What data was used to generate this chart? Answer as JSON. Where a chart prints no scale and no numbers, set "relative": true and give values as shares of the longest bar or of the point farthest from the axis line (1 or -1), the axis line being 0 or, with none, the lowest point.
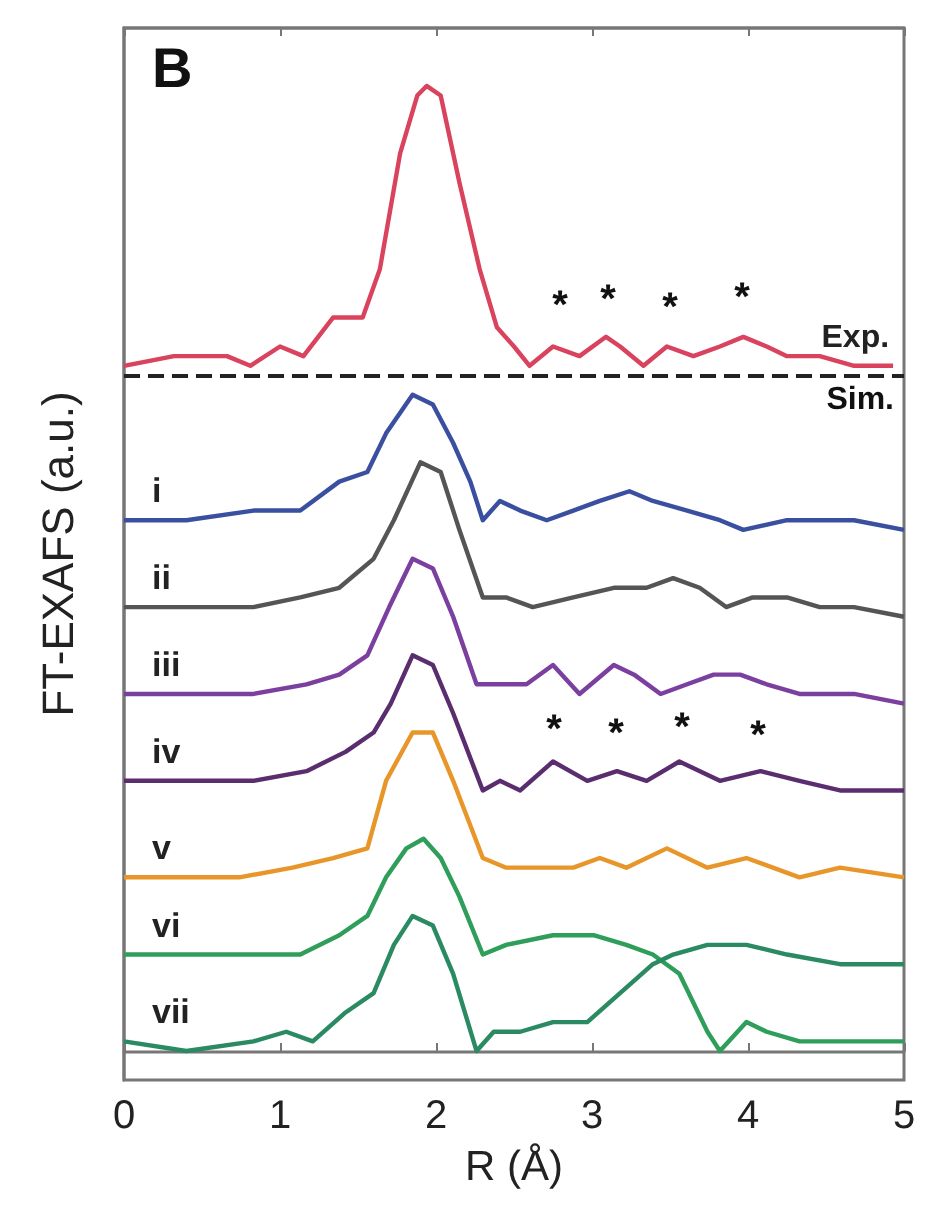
{
  "chart_data": {
    "type": "line",
    "relative": true,
    "xlabel": "R (Å)",
    "ylabel": "FT-EXAFS (a.u.)",
    "xlim": [
      0,
      5
    ],
    "xticks": [
      0,
      1,
      2,
      3,
      4,
      5
    ],
    "marker": "none",
    "legend": false,
    "annotations": [
      "B",
      "Sim.",
      "*",
      "*",
      "*",
      "*",
      "*",
      "*",
      "*",
      "*"
    ],
    "ref_lines": [
      {
        "axis": "y",
        "value": 0.7,
        "line_style": "dashed",
        "color": "#222222"
      }
    ],
    "series": [
      {
        "name": "Exp.",
        "color": "#d9435e",
        "x": [
          0,
          0.32,
          0.49,
          0.66,
          0.81,
          1.0,
          1.15,
          1.34,
          1.45,
          1.53,
          1.64,
          1.77,
          1.88,
          1.94,
          2.03,
          2.15,
          2.28,
          2.39,
          2.5,
          2.6,
          2.75,
          2.92,
          3.09,
          3.18,
          3.33,
          3.48,
          3.65,
          3.82,
          3.97,
          4.12,
          4.25,
          4.46,
          4.68,
          4.93
        ],
        "values": [
          0.71,
          0.72,
          0.72,
          0.72,
          0.71,
          0.73,
          0.72,
          0.76,
          0.76,
          0.76,
          0.81,
          0.93,
          0.99,
          1.0,
          0.99,
          0.9,
          0.81,
          0.75,
          0.73,
          0.71,
          0.73,
          0.72,
          0.74,
          0.73,
          0.71,
          0.73,
          0.72,
          0.73,
          0.74,
          0.73,
          0.72,
          0.72,
          0.71,
          0.71
        ]
      },
      {
        "name": "i",
        "color": "#3a4fa0",
        "x": [
          0,
          0.4,
          0.83,
          1.13,
          1.38,
          1.56,
          1.68,
          1.85,
          1.98,
          2.11,
          2.22,
          2.3,
          2.41,
          2.54,
          2.71,
          2.88,
          3.05,
          3.24,
          3.39,
          3.61,
          3.82,
          3.97,
          4.25,
          4.46,
          4.68,
          5.0
        ],
        "values": [
          0.55,
          0.55,
          0.56,
          0.56,
          0.59,
          0.6,
          0.64,
          0.68,
          0.67,
          0.63,
          0.59,
          0.55,
          0.57,
          0.56,
          0.55,
          0.56,
          0.57,
          0.58,
          0.57,
          0.56,
          0.55,
          0.54,
          0.55,
          0.55,
          0.55,
          0.54
        ]
      },
      {
        "name": "ii",
        "color": "#555555",
        "x": [
          0,
          0.4,
          0.83,
          1.13,
          1.38,
          1.6,
          1.73,
          1.9,
          2.03,
          2.15,
          2.3,
          2.45,
          2.62,
          2.88,
          3.14,
          3.35,
          3.52,
          3.69,
          3.86,
          4.03,
          4.25,
          4.46,
          4.68,
          5.0
        ],
        "values": [
          0.46,
          0.46,
          0.46,
          0.47,
          0.48,
          0.51,
          0.55,
          0.61,
          0.6,
          0.54,
          0.47,
          0.47,
          0.46,
          0.47,
          0.48,
          0.48,
          0.49,
          0.48,
          0.46,
          0.47,
          0.47,
          0.46,
          0.46,
          0.45
        ]
      },
      {
        "name": "iii",
        "color": "#7b3fa0",
        "x": [
          0,
          0.4,
          0.83,
          1.17,
          1.38,
          1.56,
          1.7,
          1.85,
          1.98,
          2.11,
          2.26,
          2.41,
          2.58,
          2.75,
          2.92,
          3.14,
          3.27,
          3.44,
          3.61,
          3.78,
          3.95,
          4.12,
          4.33,
          4.68,
          5.0
        ],
        "values": [
          0.37,
          0.37,
          0.37,
          0.38,
          0.39,
          0.41,
          0.46,
          0.51,
          0.5,
          0.45,
          0.38,
          0.38,
          0.38,
          0.4,
          0.37,
          0.4,
          0.39,
          0.37,
          0.38,
          0.39,
          0.39,
          0.38,
          0.37,
          0.37,
          0.36
        ]
      },
      {
        "name": "iv",
        "color": "#5a2d6e",
        "x": [
          0,
          0.4,
          0.83,
          1.17,
          1.42,
          1.6,
          1.71,
          1.85,
          1.98,
          2.11,
          2.3,
          2.41,
          2.54,
          2.75,
          2.97,
          3.16,
          3.35,
          3.56,
          3.82,
          4.08,
          4.33,
          4.59,
          5.0
        ],
        "values": [
          0.28,
          0.28,
          0.28,
          0.29,
          0.31,
          0.33,
          0.36,
          0.41,
          0.4,
          0.35,
          0.27,
          0.28,
          0.27,
          0.3,
          0.28,
          0.29,
          0.28,
          0.3,
          0.28,
          0.29,
          0.28,
          0.27,
          0.27
        ]
      },
      {
        "name": "v",
        "color": "#e8962a",
        "x": [
          0,
          0.4,
          0.74,
          1.08,
          1.34,
          1.56,
          1.68,
          1.85,
          1.98,
          2.11,
          2.3,
          2.45,
          2.67,
          2.88,
          3.05,
          3.22,
          3.48,
          3.74,
          3.99,
          4.33,
          4.59,
          5.0
        ],
        "values": [
          0.18,
          0.18,
          0.18,
          0.19,
          0.2,
          0.21,
          0.28,
          0.33,
          0.33,
          0.28,
          0.2,
          0.19,
          0.19,
          0.19,
          0.2,
          0.19,
          0.21,
          0.19,
          0.2,
          0.18,
          0.19,
          0.18
        ]
      },
      {
        "name": "vi",
        "color": "#2e9e5a",
        "x": [
          0,
          0.4,
          0.83,
          1.13,
          1.38,
          1.56,
          1.68,
          1.81,
          1.92,
          2.03,
          2.15,
          2.3,
          2.45,
          2.75,
          3.01,
          3.22,
          3.39,
          3.56,
          3.74,
          3.82,
          3.99,
          4.12,
          4.33,
          4.59,
          5.0
        ],
        "values": [
          0.1,
          0.1,
          0.1,
          0.1,
          0.12,
          0.14,
          0.18,
          0.21,
          0.22,
          0.2,
          0.16,
          0.1,
          0.11,
          0.12,
          0.12,
          0.11,
          0.1,
          0.08,
          0.02,
          0.0,
          0.03,
          0.02,
          0.01,
          0.01,
          0.01
        ]
      },
      {
        "name": "vii",
        "color": "#2a8a62",
        "x": [
          0,
          0.4,
          0.83,
          1.04,
          1.21,
          1.42,
          1.6,
          1.73,
          1.85,
          1.98,
          2.11,
          2.26,
          2.37,
          2.54,
          2.75,
          2.97,
          3.18,
          3.39,
          3.52,
          3.74,
          3.99,
          4.25,
          4.59,
          5.0
        ],
        "values": [
          0.01,
          0.0,
          0.01,
          0.02,
          0.01,
          0.04,
          0.06,
          0.11,
          0.14,
          0.13,
          0.08,
          0.0,
          0.02,
          0.02,
          0.03,
          0.03,
          0.06,
          0.09,
          0.1,
          0.11,
          0.11,
          0.1,
          0.09,
          0.09
        ]
      }
    ]
  }
}
